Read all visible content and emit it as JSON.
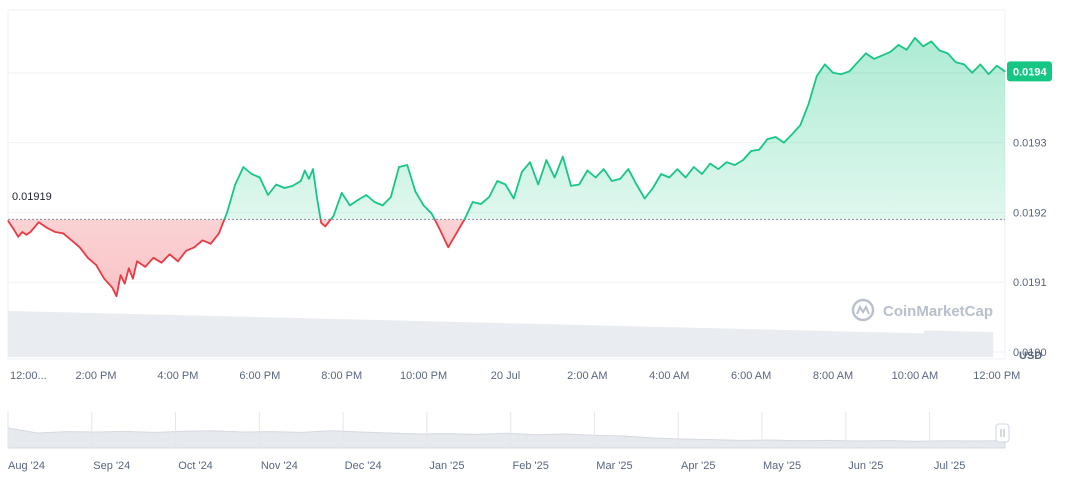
{
  "colors": {
    "up": "#16c784",
    "down": "#ea3943",
    "grid": "#eff2f5",
    "volume": "#e9ecf1",
    "navigator_fill": "#e6e9ee",
    "reference": "#858ca2",
    "text": "#58667e"
  },
  "watermark": {
    "text": "CoinMarketCap",
    "icon": "coinmarketcap-logo-icon"
  },
  "chart_data": {
    "type": "area",
    "currency_label": "USD",
    "reference_value": 0.01919,
    "reference_label": "0.01919",
    "current_label": "0.0194",
    "ylim": [
      0.01899,
      0.01949
    ],
    "y_ticks": [
      0.019,
      0.0191,
      0.0192,
      0.0193,
      0.0194
    ],
    "y_tick_labels": [
      "0.0190",
      "0.0191",
      "0.0192",
      "0.0193",
      "0.0194"
    ],
    "x_range_hours": [
      11.85,
      36.2
    ],
    "x_ticks": [
      {
        "t": 12.0,
        "label": "12:00..."
      },
      {
        "t": 14.0,
        "label": "2:00 PM"
      },
      {
        "t": 16.0,
        "label": "4:00 PM"
      },
      {
        "t": 18.0,
        "label": "6:00 PM"
      },
      {
        "t": 20.0,
        "label": "8:00 PM"
      },
      {
        "t": 22.0,
        "label": "10:00 PM"
      },
      {
        "t": 24.0,
        "label": "20 Jul"
      },
      {
        "t": 26.0,
        "label": "2:00 AM"
      },
      {
        "t": 28.0,
        "label": "4:00 AM"
      },
      {
        "t": 30.0,
        "label": "6:00 AM"
      },
      {
        "t": 32.0,
        "label": "8:00 AM"
      },
      {
        "t": 34.0,
        "label": "10:00 AM"
      },
      {
        "t": 36.0,
        "label": "12:00 PM"
      }
    ],
    "series": [
      {
        "points": [
          [
            11.85,
            0.019188
          ],
          [
            12.0,
            0.019175
          ],
          [
            12.1,
            0.019165
          ],
          [
            12.2,
            0.019172
          ],
          [
            12.3,
            0.019168
          ],
          [
            12.4,
            0.019172
          ],
          [
            12.6,
            0.019186
          ],
          [
            12.8,
            0.019178
          ],
          [
            13.0,
            0.019172
          ],
          [
            13.2,
            0.01917
          ],
          [
            13.4,
            0.01916
          ],
          [
            13.6,
            0.01915
          ],
          [
            13.8,
            0.019135
          ],
          [
            14.0,
            0.019125
          ],
          [
            14.2,
            0.019105
          ],
          [
            14.4,
            0.019092
          ],
          [
            14.5,
            0.01908
          ],
          [
            14.6,
            0.01911
          ],
          [
            14.7,
            0.019098
          ],
          [
            14.8,
            0.01912
          ],
          [
            14.9,
            0.019105
          ],
          [
            15.0,
            0.01913
          ],
          [
            15.2,
            0.019122
          ],
          [
            15.4,
            0.019135
          ],
          [
            15.6,
            0.019128
          ],
          [
            15.8,
            0.01914
          ],
          [
            16.0,
            0.01913
          ],
          [
            16.2,
            0.019145
          ],
          [
            16.4,
            0.01915
          ],
          [
            16.6,
            0.01916
          ],
          [
            16.8,
            0.019155
          ],
          [
            17.0,
            0.01917
          ],
          [
            17.2,
            0.0192
          ],
          [
            17.4,
            0.01924
          ],
          [
            17.6,
            0.019265
          ],
          [
            17.8,
            0.019255
          ],
          [
            18.0,
            0.01925
          ],
          [
            18.2,
            0.019225
          ],
          [
            18.4,
            0.01924
          ],
          [
            18.6,
            0.019235
          ],
          [
            18.8,
            0.019238
          ],
          [
            19.0,
            0.019245
          ],
          [
            19.1,
            0.01926
          ],
          [
            19.2,
            0.019248
          ],
          [
            19.3,
            0.019262
          ],
          [
            19.4,
            0.01922
          ],
          [
            19.5,
            0.019185
          ],
          [
            19.6,
            0.01918
          ],
          [
            19.8,
            0.019195
          ],
          [
            20.0,
            0.019228
          ],
          [
            20.2,
            0.01921
          ],
          [
            20.4,
            0.019218
          ],
          [
            20.6,
            0.019225
          ],
          [
            20.8,
            0.019215
          ],
          [
            21.0,
            0.01921
          ],
          [
            21.2,
            0.019222
          ],
          [
            21.4,
            0.019265
          ],
          [
            21.6,
            0.019268
          ],
          [
            21.8,
            0.01923
          ],
          [
            22.0,
            0.01921
          ],
          [
            22.2,
            0.019198
          ],
          [
            22.4,
            0.019175
          ],
          [
            22.6,
            0.01915
          ],
          [
            22.8,
            0.01917
          ],
          [
            23.0,
            0.01919
          ],
          [
            23.2,
            0.019215
          ],
          [
            23.4,
            0.019212
          ],
          [
            23.6,
            0.019222
          ],
          [
            23.8,
            0.019245
          ],
          [
            24.0,
            0.01924
          ],
          [
            24.2,
            0.01922
          ],
          [
            24.4,
            0.019258
          ],
          [
            24.6,
            0.019272
          ],
          [
            24.8,
            0.01924
          ],
          [
            25.0,
            0.019275
          ],
          [
            25.2,
            0.01925
          ],
          [
            25.4,
            0.01928
          ],
          [
            25.6,
            0.019238
          ],
          [
            25.8,
            0.01924
          ],
          [
            26.0,
            0.01926
          ],
          [
            26.2,
            0.01925
          ],
          [
            26.4,
            0.019262
          ],
          [
            26.6,
            0.019245
          ],
          [
            26.8,
            0.019248
          ],
          [
            27.0,
            0.019262
          ],
          [
            27.2,
            0.01924
          ],
          [
            27.4,
            0.01922
          ],
          [
            27.6,
            0.019235
          ],
          [
            27.8,
            0.019255
          ],
          [
            28.0,
            0.01925
          ],
          [
            28.2,
            0.019262
          ],
          [
            28.4,
            0.01925
          ],
          [
            28.6,
            0.019265
          ],
          [
            28.8,
            0.019255
          ],
          [
            29.0,
            0.01927
          ],
          [
            29.2,
            0.019262
          ],
          [
            29.4,
            0.019272
          ],
          [
            29.6,
            0.019268
          ],
          [
            29.8,
            0.019275
          ],
          [
            30.0,
            0.019288
          ],
          [
            30.2,
            0.01929
          ],
          [
            30.4,
            0.019305
          ],
          [
            30.6,
            0.019308
          ],
          [
            30.8,
            0.0193
          ],
          [
            31.0,
            0.019312
          ],
          [
            31.2,
            0.019325
          ],
          [
            31.4,
            0.019355
          ],
          [
            31.6,
            0.019395
          ],
          [
            31.8,
            0.019412
          ],
          [
            32.0,
            0.0194
          ],
          [
            32.2,
            0.019398
          ],
          [
            32.4,
            0.019402
          ],
          [
            32.6,
            0.019415
          ],
          [
            32.8,
            0.019428
          ],
          [
            33.0,
            0.01942
          ],
          [
            33.2,
            0.019425
          ],
          [
            33.4,
            0.01943
          ],
          [
            33.6,
            0.01944
          ],
          [
            33.8,
            0.019433
          ],
          [
            34.0,
            0.01945
          ],
          [
            34.2,
            0.019438
          ],
          [
            34.4,
            0.019445
          ],
          [
            34.6,
            0.019432
          ],
          [
            34.8,
            0.019428
          ],
          [
            35.0,
            0.019415
          ],
          [
            35.2,
            0.019412
          ],
          [
            35.4,
            0.0194
          ],
          [
            35.6,
            0.019412
          ],
          [
            35.8,
            0.019398
          ],
          [
            36.0,
            0.01941
          ],
          [
            36.2,
            0.019402
          ]
        ]
      }
    ],
    "navigator": {
      "x_labels": [
        "Aug '24",
        "Sep '24",
        "Oct '24",
        "Nov '24",
        "Dec '24",
        "Jan '25",
        "Feb '25",
        "Mar '25",
        "Apr '25",
        "May '25",
        "Jun '25",
        "Jul '25"
      ],
      "values": [
        0.8,
        0.55,
        0.62,
        0.6,
        0.63,
        0.58,
        0.64,
        0.66,
        0.6,
        0.62,
        0.58,
        0.66,
        0.6,
        0.55,
        0.5,
        0.52,
        0.48,
        0.54,
        0.46,
        0.5,
        0.44,
        0.4,
        0.3,
        0.25,
        0.22,
        0.18,
        0.2,
        0.16,
        0.18,
        0.15,
        0.17,
        0.14,
        0.16,
        0.15,
        0.17
      ]
    }
  }
}
